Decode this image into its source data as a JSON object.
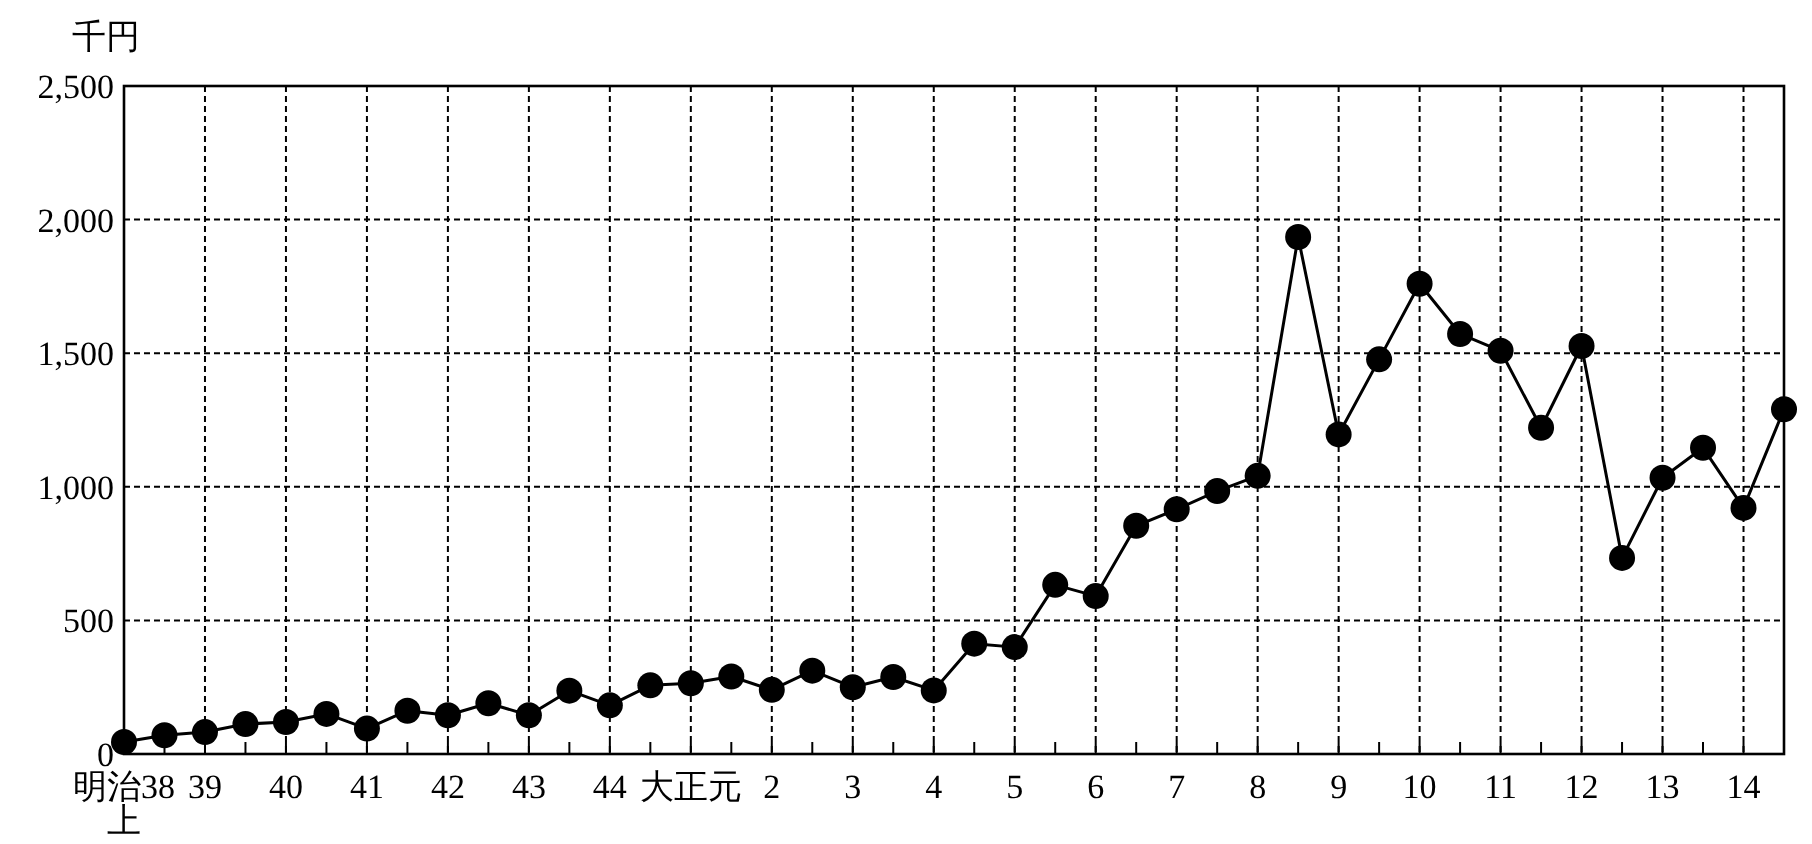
{
  "chart_data": {
    "type": "line",
    "ylabel": "千円",
    "categories": [
      "明治38\n上",
      null,
      "39",
      null,
      "40",
      null,
      "41",
      null,
      "42",
      null,
      "43",
      null,
      "44",
      null,
      "大正元",
      null,
      "2",
      null,
      "3",
      null,
      "4",
      null,
      "5",
      null,
      "6",
      null,
      "7",
      null,
      "8",
      null,
      "9",
      null,
      "10",
      null,
      "11",
      null,
      "12",
      null,
      "13",
      null,
      "14",
      null
    ],
    "series": [
      {
        "color": "#000000",
        "values": [
          45,
          70,
          82,
          112,
          120,
          150,
          95,
          162,
          145,
          190,
          145,
          237,
          182,
          257,
          265,
          290,
          240,
          312,
          250,
          288,
          238,
          413,
          400,
          633,
          591,
          854,
          916,
          984,
          1041,
          1935,
          1196,
          1477,
          1760,
          1572,
          1509,
          1221,
          1527,
          734,
          1034,
          1146,
          921,
          1290
        ]
      }
    ],
    "ylim": [
      0,
      2500
    ],
    "yticks": [
      0,
      {
        "value": 500,
        "label": "500"
      },
      {
        "value": 1000,
        "label": "1,000"
      },
      {
        "value": 1500,
        "label": "1,500"
      },
      {
        "value": 2000,
        "label": "2,000"
      },
      {
        "value": 2500,
        "label": "2,500"
      }
    ],
    "grid": true,
    "marker": "circle",
    "line_style": "solid"
  }
}
